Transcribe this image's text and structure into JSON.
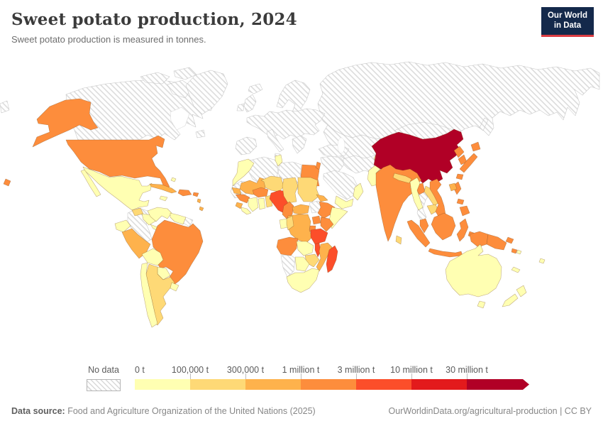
{
  "header": {
    "title": "Sweet potato production, 2024",
    "subtitle": "Sweet potato production is measured in tonnes.",
    "logo": {
      "line1": "Our World",
      "line2": "in Data",
      "bg_color": "#14294b",
      "accent_color": "#dc3d43"
    }
  },
  "legend": {
    "no_data_label": "No data",
    "tick_labels": [
      "0 t",
      "100,000 t",
      "300,000 t",
      "1 million t",
      "3 million t",
      "10 million t",
      "30 million t"
    ],
    "colors": [
      "#FFFFB2",
      "#FED976",
      "#FEB24C",
      "#FD8D3C",
      "#FC4E2A",
      "#E31A1C",
      "#B10026"
    ]
  },
  "footer": {
    "source_label": "Data source:",
    "source_text": " Food and Agriculture Organization of the United Nations (2025)",
    "credit": "OurWorldinData.org/agricultural-production | CC BY"
  },
  "chart_data": {
    "type": "choropleth-map",
    "title": "Sweet potato production, 2024",
    "unit": "tonnes",
    "no_data_style": "hatched",
    "bucket_labels": [
      "0-100,000 t",
      "100,000-300,000 t",
      "300,000 t-1 million t",
      "1-3 million t",
      "3-10 million t",
      "10-30 million t",
      "30+ million t"
    ],
    "countries": {
      "usa": {
        "name": "United States",
        "bucket": 3
      },
      "canada": {
        "name": "Canada",
        "bucket": "nd"
      },
      "greenland": {
        "name": "Greenland",
        "bucket": "nd"
      },
      "mexico": {
        "name": "Mexico",
        "bucket": 0
      },
      "guatemala": {
        "name": "Guatemala",
        "bucket": 1
      },
      "honduras_nicaragua": {
        "name": "Honduras/Nicaragua",
        "bucket": 0
      },
      "costarica_panama": {
        "name": "Costa Rica/Panama",
        "bucket": 0
      },
      "cuba": {
        "name": "Cuba",
        "bucket": 2
      },
      "jamaica": {
        "name": "Jamaica",
        "bucket": 0
      },
      "bahamas": {
        "name": "Bahamas",
        "bucket": 0
      },
      "hispaniola": {
        "name": "Haiti/Dominican Republic",
        "bucket": 3
      },
      "puerto_rico": {
        "name": "Puerto Rico",
        "bucket": 3
      },
      "lesser_antilles": {
        "name": "Lesser Antilles",
        "bucket": 2
      },
      "colombia": {
        "name": "Colombia",
        "bucket": "nd"
      },
      "venezuela": {
        "name": "Venezuela",
        "bucket": 0
      },
      "guyana_suriname": {
        "name": "Guyana/Suriname",
        "bucket": 0
      },
      "french_guiana": {
        "name": "French Guiana",
        "bucket": "nd"
      },
      "ecuador": {
        "name": "Ecuador",
        "bucket": 0
      },
      "peru": {
        "name": "Peru",
        "bucket": 2
      },
      "brazil": {
        "name": "Brazil",
        "bucket": 3
      },
      "bolivia": {
        "name": "Bolivia",
        "bucket": 0
      },
      "paraguay": {
        "name": "Paraguay",
        "bucket": 0
      },
      "chile": {
        "name": "Chile",
        "bucket": 0
      },
      "argentina": {
        "name": "Argentina",
        "bucket": 1
      },
      "uruguay": {
        "name": "Uruguay",
        "bucket": 0
      },
      "morocco": {
        "name": "Morocco",
        "bucket": 0
      },
      "western_sahara_mauritania": {
        "name": "Western Sahara/Mauritania",
        "bucket": "nd"
      },
      "algeria": {
        "name": "Algeria",
        "bucket": "nd"
      },
      "tunisia": {
        "name": "Tunisia",
        "bucket": 0
      },
      "libya": {
        "name": "Libya",
        "bucket": "nd"
      },
      "egypt": {
        "name": "Egypt",
        "bucket": 3
      },
      "mali": {
        "name": "Mali",
        "bucket": 2
      },
      "senegal": {
        "name": "Senegal",
        "bucket": 2
      },
      "guinea": {
        "name": "Guinea",
        "bucket": 3
      },
      "sierra_leone": {
        "name": "Sierra Leone",
        "bucket": 2
      },
      "liberia": {
        "name": "Liberia",
        "bucket": 0
      },
      "cote_divoire": {
        "name": "Cote d'Ivoire",
        "bucket": 0
      },
      "ghana": {
        "name": "Ghana",
        "bucket": 0
      },
      "togo_benin": {
        "name": "Togo/Benin",
        "bucket": 1
      },
      "burkina_faso": {
        "name": "Burkina Faso",
        "bucket": 3
      },
      "niger": {
        "name": "Niger",
        "bucket": 1
      },
      "nigeria": {
        "name": "Nigeria",
        "bucket": 4
      },
      "chad": {
        "name": "Chad",
        "bucket": 1
      },
      "sudan": {
        "name": "Sudan",
        "bucket": 1
      },
      "eritrea": {
        "name": "Eritrea/Djibouti",
        "bucket": 2
      },
      "cameroon": {
        "name": "Cameroon",
        "bucket": 3
      },
      "central_african_republic": {
        "name": "Central African Republic",
        "bucket": 2
      },
      "south_sudan": {
        "name": "South Sudan",
        "bucket": "nd"
      },
      "ethiopia": {
        "name": "Ethiopia",
        "bucket": 3
      },
      "somalia": {
        "name": "Somalia",
        "bucket": 0
      },
      "uganda": {
        "name": "Uganda",
        "bucket": 3
      },
      "kenya": {
        "name": "Kenya",
        "bucket": 3
      },
      "rwanda_burundi": {
        "name": "Rwanda/Burundi",
        "bucket": 3
      },
      "drc": {
        "name": "Democratic Republic of Congo",
        "bucket": 2
      },
      "gabon": {
        "name": "Gabon",
        "bucket": 0
      },
      "congo": {
        "name": "Congo",
        "bucket": 1
      },
      "tanzania": {
        "name": "Tanzania",
        "bucket": 4
      },
      "malawi": {
        "name": "Malawi",
        "bucket": 4
      },
      "mozambique": {
        "name": "Mozambique",
        "bucket": 2
      },
      "angola": {
        "name": "Angola",
        "bucket": 3
      },
      "zambia": {
        "name": "Zambia",
        "bucket": 0
      },
      "zimbabwe": {
        "name": "Zimbabwe",
        "bucket": 1
      },
      "botswana": {
        "name": "Botswana",
        "bucket": 0
      },
      "namibia": {
        "name": "Namibia",
        "bucket": "nd"
      },
      "south_africa": {
        "name": "South Africa",
        "bucket": 0
      },
      "madagascar": {
        "name": "Madagascar",
        "bucket": 4
      },
      "iceland": {
        "name": "Iceland",
        "bucket": "nd"
      },
      "united_kingdom": {
        "name": "United Kingdom",
        "bucket": "nd"
      },
      "ireland": {
        "name": "Ireland",
        "bucket": "nd"
      },
      "scandinavia": {
        "name": "Scandinavia",
        "bucket": "nd"
      },
      "denmark": {
        "name": "Denmark",
        "bucket": "nd"
      },
      "europe_mainland": {
        "name": "Mainland Europe",
        "bucket": "nd"
      },
      "iberia": {
        "name": "Spain/Portugal",
        "bucket": "nd"
      },
      "italy": {
        "name": "Italy",
        "bucket": "nd"
      },
      "sicily": {
        "name": "Sicily",
        "bucket": "nd"
      },
      "balkans": {
        "name": "Balkans/Greece",
        "bucket": "nd"
      },
      "turkey": {
        "name": "Turkey",
        "bucket": "nd"
      },
      "levant": {
        "name": "Syria/Iraq/Jordan",
        "bucket": "nd"
      },
      "israel": {
        "name": "Israel",
        "bucket": 3
      },
      "saudi_arabia": {
        "name": "Saudi Arabia",
        "bucket": "nd"
      },
      "yemen": {
        "name": "Yemen",
        "bucket": 0
      },
      "oman": {
        "name": "Oman",
        "bucket": 0
      },
      "iran_afghanistan": {
        "name": "Iran/Afghanistan",
        "bucket": "nd"
      },
      "kazakhstan_central_asia": {
        "name": "Kazakhstan/Central Asia",
        "bucket": "nd"
      },
      "russia": {
        "name": "Russia",
        "bucket": "nd"
      },
      "mongolia": {
        "name": "Mongolia",
        "bucket": "nd"
      },
      "china": {
        "name": "China",
        "bucket": 6
      },
      "north_korea": {
        "name": "North Korea",
        "bucket": 3
      },
      "south_korea": {
        "name": "South Korea",
        "bucket": 3
      },
      "japan": {
        "name": "Japan",
        "bucket": 3
      },
      "taiwan": {
        "name": "Taiwan",
        "bucket": 2
      },
      "india": {
        "name": "India",
        "bucket": 3
      },
      "pakistan": {
        "name": "Pakistan",
        "bucket": 0
      },
      "nepal": {
        "name": "Nepal",
        "bucket": 1
      },
      "bhutan": {
        "name": "Bhutan",
        "bucket": 1
      },
      "bangladesh": {
        "name": "Bangladesh",
        "bucket": 3
      },
      "sri_lanka": {
        "name": "Sri Lanka",
        "bucket": 1
      },
      "myanmar": {
        "name": "Myanmar",
        "bucket": 0
      },
      "thailand": {
        "name": "Thailand",
        "bucket": "nd"
      },
      "laos": {
        "name": "Laos",
        "bucket": 1
      },
      "cambodia": {
        "name": "Cambodia",
        "bucket": 1
      },
      "vietnam": {
        "name": "Vietnam",
        "bucket": 3
      },
      "malaysia": {
        "name": "Malaysia",
        "bucket": 3
      },
      "indonesia": {
        "name": "Indonesia",
        "bucket": 3
      },
      "philippines": {
        "name": "Philippines",
        "bucket": 3
      },
      "papua_new_guinea": {
        "name": "Papua New Guinea",
        "bucket": 3
      },
      "solomon_islands": {
        "name": "Solomon Islands",
        "bucket": 0
      },
      "australia": {
        "name": "Australia",
        "bucket": 0
      },
      "new_zealand": {
        "name": "New Zealand",
        "bucket": 0
      },
      "new_caledonia": {
        "name": "New Caledonia",
        "bucket": 0
      },
      "fiji": {
        "name": "Fiji",
        "bucket": 0
      }
    }
  }
}
